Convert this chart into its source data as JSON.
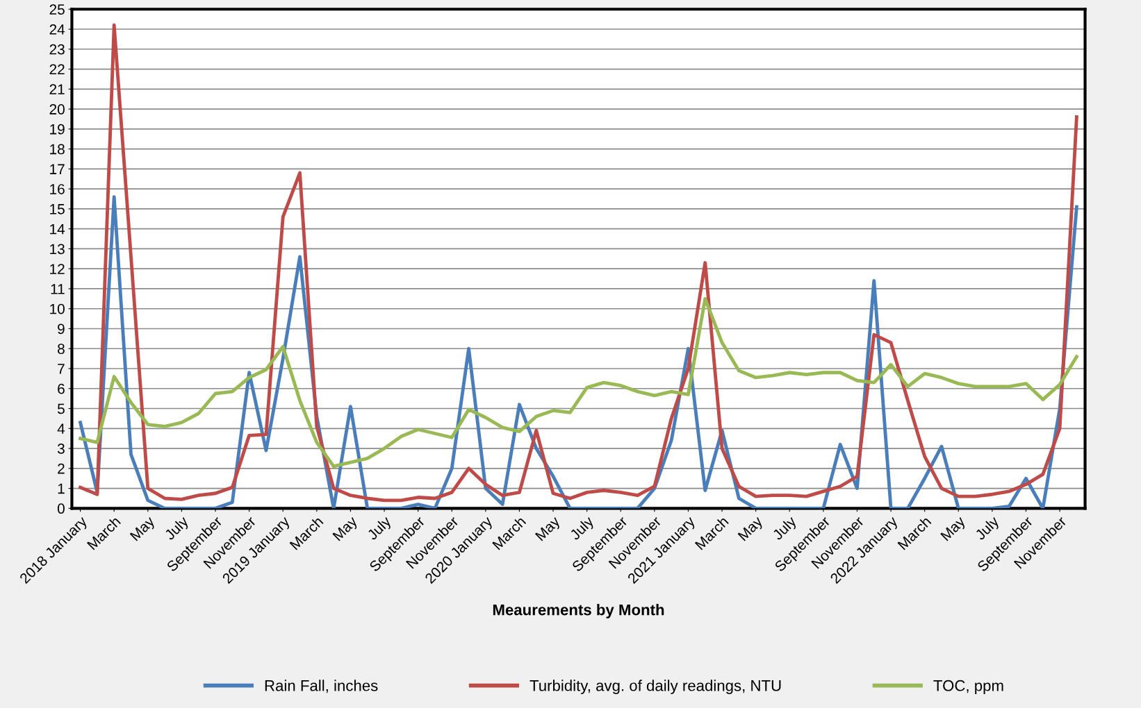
{
  "chart_data": {
    "type": "line",
    "xlabel": "Meaurements by Month",
    "categories": [
      "2018 January",
      null,
      "March",
      null,
      "May",
      null,
      "July",
      null,
      "September",
      null,
      "November",
      null,
      "2019 January",
      null,
      "March",
      null,
      "May",
      null,
      "July",
      null,
      "September",
      null,
      "November",
      null,
      "2020 January",
      null,
      "March",
      null,
      "May",
      null,
      "July",
      null,
      "September",
      null,
      "November",
      null,
      "2021 January",
      null,
      "March",
      null,
      "May",
      null,
      "July",
      null,
      "September",
      null,
      "November",
      null,
      "2022 January",
      null,
      "March",
      null,
      "May",
      null,
      "July",
      null,
      "September",
      null,
      "November",
      null
    ],
    "series": [
      {
        "name": "Rain Fall, inches",
        "color": "#4a7ebb",
        "values": [
          4.3,
          0.8,
          15.6,
          2.7,
          0.4,
          0,
          0,
          0,
          0,
          0.3,
          6.8,
          2.9,
          7.5,
          12.6,
          4.6,
          0,
          5.1,
          0,
          0,
          0,
          0.2,
          0,
          2.0,
          8.0,
          1.0,
          0.2,
          5.2,
          3.0,
          1.6,
          0,
          0,
          0,
          0,
          0,
          1.0,
          3.4,
          8.0,
          0.9,
          3.9,
          0.5,
          0,
          0,
          0,
          0,
          0,
          3.2,
          1.0,
          11.4,
          0,
          0,
          1.5,
          3.1,
          0,
          0,
          0,
          0.1,
          1.5,
          0,
          5.0,
          15.1
        ]
      },
      {
        "name": "Turbidity, avg. of daily readings, NTU",
        "color": "#be4b48",
        "values": [
          1.05,
          0.7,
          24.2,
          12.6,
          1.0,
          0.5,
          0.45,
          0.65,
          0.75,
          1.05,
          3.65,
          3.7,
          14.6,
          16.8,
          4.1,
          1.0,
          0.65,
          0.5,
          0.4,
          0.4,
          0.55,
          0.5,
          0.8,
          2.0,
          1.2,
          0.65,
          0.8,
          3.9,
          0.75,
          0.5,
          0.8,
          0.9,
          0.8,
          0.65,
          1.1,
          4.5,
          7.0,
          12.3,
          3.0,
          1.1,
          0.6,
          0.65,
          0.65,
          0.6,
          0.85,
          1.1,
          1.6,
          8.7,
          8.3,
          5.4,
          2.6,
          1.0,
          0.6,
          0.6,
          0.7,
          0.85,
          1.2,
          1.7,
          4.0,
          19.6
        ]
      },
      {
        "name": "TOC, ppm",
        "color": "#98b954",
        "values": [
          3.5,
          3.3,
          6.6,
          5.3,
          4.2,
          4.1,
          4.3,
          4.75,
          5.75,
          5.85,
          6.55,
          6.95,
          8.1,
          5.4,
          3.3,
          2.1,
          2.3,
          2.5,
          3.0,
          3.6,
          3.95,
          3.75,
          3.55,
          4.95,
          4.55,
          4.05,
          3.85,
          4.6,
          4.9,
          4.8,
          6.05,
          6.3,
          6.15,
          5.85,
          5.65,
          5.85,
          5.7,
          10.5,
          8.3,
          6.9,
          6.55,
          6.65,
          6.8,
          6.7,
          6.8,
          6.8,
          6.4,
          6.3,
          7.2,
          6.1,
          6.75,
          6.55,
          6.25,
          6.1,
          6.1,
          6.1,
          6.25,
          5.45,
          6.2,
          7.6
        ]
      }
    ],
    "ylim": [
      0,
      25
    ],
    "yticks": [
      0,
      1,
      2,
      3,
      4,
      5,
      6,
      7,
      8,
      9,
      10,
      11,
      12,
      13,
      14,
      15,
      16,
      17,
      18,
      19,
      20,
      21,
      22,
      23,
      24,
      25
    ],
    "grid": "y",
    "legend": "bottom",
    "marker": "none",
    "line_style": "solid"
  }
}
